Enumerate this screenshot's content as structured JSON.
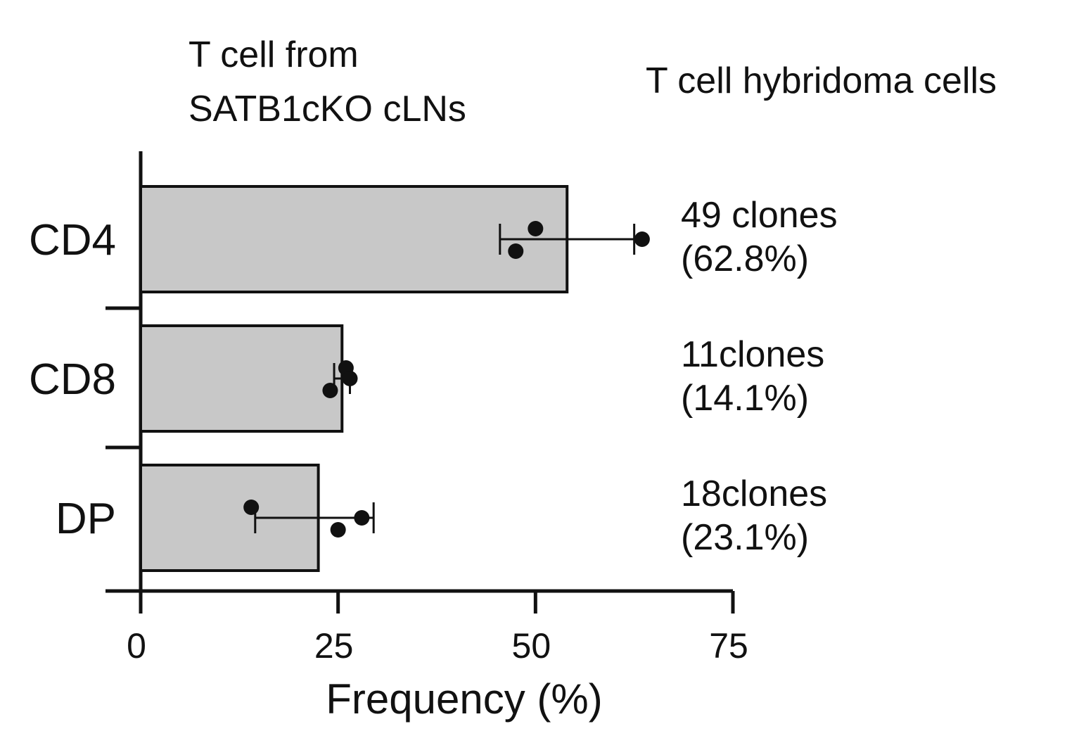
{
  "chart_data": {
    "type": "bar",
    "orientation": "horizontal",
    "title_lines": [
      "T cell from",
      "SATB1cKO cLNs"
    ],
    "right_title": "T cell hybridoma cells",
    "xlabel": "Frequency (%)",
    "ylabel": "",
    "xlim": [
      0,
      75
    ],
    "xticks": [
      "0",
      "25",
      "50",
      "75"
    ],
    "categories": [
      "CD4",
      "CD8",
      "DP"
    ],
    "values": [
      54,
      25.5,
      22.5
    ],
    "error": [
      {
        "low": 45.5,
        "high": 62.5
      },
      {
        "low": 24.5,
        "high": 26.5
      },
      {
        "low": 14.5,
        "high": 29.5
      }
    ],
    "points": [
      [
        50,
        47.5,
        63.5
      ],
      [
        26,
        24,
        26.5
      ],
      [
        14,
        25,
        28
      ]
    ],
    "annotations": [
      [
        "49 clones",
        "(62.8%)"
      ],
      [
        "11clones",
        "(14.1%)"
      ],
      [
        "18clones",
        "(23.1%)"
      ]
    ],
    "bar_color": "#c8c8c8",
    "grid": false,
    "legend": "none"
  }
}
